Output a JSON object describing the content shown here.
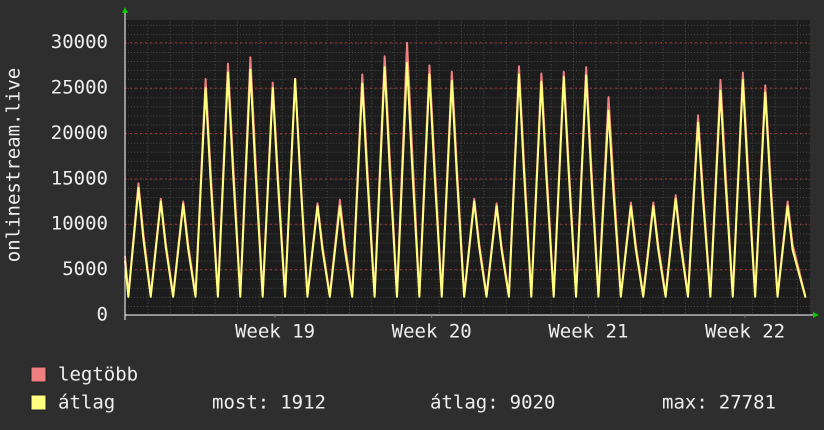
{
  "chart_data": {
    "type": "line",
    "ylabel": "onlinestream.live",
    "ylim": [
      0,
      32500
    ],
    "yticks": [
      0,
      5000,
      10000,
      15000,
      20000,
      25000,
      30000
    ],
    "xlim": [
      -3.2,
      27.4
    ],
    "xticks": [
      {
        "value": 3.5,
        "label": "Week 19"
      },
      {
        "value": 10.5,
        "label": "Week 20"
      },
      {
        "value": 17.5,
        "label": "Week 21"
      },
      {
        "value": 24.5,
        "label": "Week 22"
      }
    ],
    "grid": true,
    "x": [
      -3.2,
      -3.05,
      -2.6,
      -2.38,
      -2.05,
      -1.6,
      -1.38,
      -1.05,
      -0.6,
      -0.38,
      -0.05,
      0.4,
      0.62,
      0.95,
      1.4,
      1.62,
      1.95,
      2.4,
      2.62,
      2.95,
      3.4,
      3.62,
      3.95,
      4.4,
      4.62,
      4.95,
      5.4,
      5.62,
      5.95,
      6.4,
      6.62,
      6.95,
      7.4,
      7.62,
      7.95,
      8.4,
      8.62,
      8.95,
      9.4,
      9.62,
      9.95,
      10.4,
      10.62,
      10.95,
      11.4,
      11.62,
      11.95,
      12.4,
      12.62,
      12.95,
      13.4,
      13.62,
      13.95,
      14.4,
      14.62,
      14.95,
      15.4,
      15.62,
      15.95,
      16.4,
      16.62,
      16.95,
      17.4,
      17.62,
      17.95,
      18.4,
      18.62,
      18.95,
      19.4,
      19.62,
      19.95,
      20.4,
      20.62,
      20.95,
      21.4,
      21.62,
      21.95,
      22.4,
      22.62,
      22.95,
      23.4,
      23.62,
      23.95,
      24.4,
      24.62,
      24.95,
      25.4,
      25.62,
      25.95,
      26.4,
      26.62,
      27.2
    ],
    "series": [
      {
        "name": "legtöbb",
        "color": "#f08080",
        "values": [
          6500,
          2200,
          14500,
          9000,
          2200,
          12800,
          7900,
          2200,
          12500,
          7800,
          2200,
          26000,
          16100,
          2200,
          27700,
          17200,
          2200,
          28400,
          17600,
          2200,
          25600,
          15900,
          2200,
          26000,
          16100,
          2200,
          12300,
          7600,
          2200,
          12700,
          7900,
          2200,
          26500,
          16400,
          2200,
          28500,
          17700,
          2200,
          30000,
          18600,
          2200,
          27500,
          17100,
          2200,
          26800,
          16600,
          2200,
          12800,
          7900,
          2200,
          12300,
          7600,
          2200,
          27400,
          17000,
          2200,
          26600,
          16500,
          2200,
          26800,
          16600,
          2200,
          27300,
          16900,
          2200,
          24000,
          14900,
          2200,
          12400,
          7700,
          2200,
          12400,
          7700,
          2200,
          13200,
          8200,
          2200,
          22000,
          13600,
          2200,
          25900,
          16100,
          2200,
          26700,
          16600,
          2200,
          25300,
          15700,
          2200,
          12500,
          7800,
          2000
        ]
      },
      {
        "name": "átlag",
        "color": "#ffff80",
        "values": [
          6000,
          2000,
          14000,
          8400,
          2000,
          12500,
          7500,
          2000,
          12200,
          7300,
          2000,
          25000,
          15000,
          2000,
          26700,
          16000,
          2000,
          27000,
          16200,
          2000,
          25000,
          15000,
          2000,
          26000,
          15600,
          2000,
          12000,
          7200,
          2000,
          12000,
          7200,
          2000,
          25500,
          15300,
          2000,
          27300,
          16400,
          2000,
          27781,
          16700,
          2000,
          26500,
          15900,
          2000,
          25800,
          15500,
          2000,
          12500,
          7500,
          2000,
          12000,
          7200,
          2000,
          26500,
          15900,
          2000,
          25700,
          15400,
          2000,
          26200,
          15700,
          2000,
          26400,
          15800,
          2000,
          22500,
          13500,
          2000,
          12000,
          7200,
          2000,
          12000,
          7200,
          2000,
          12800,
          7700,
          2000,
          21200,
          12700,
          2000,
          24700,
          14800,
          2000,
          25900,
          15500,
          2000,
          24500,
          14700,
          2000,
          12000,
          7200,
          1912
        ]
      }
    ],
    "stats": [
      {
        "label": "most:",
        "value": 1912
      },
      {
        "label": "átlag:",
        "value": 9020
      },
      {
        "label": "max:",
        "value": 27781
      }
    ]
  }
}
